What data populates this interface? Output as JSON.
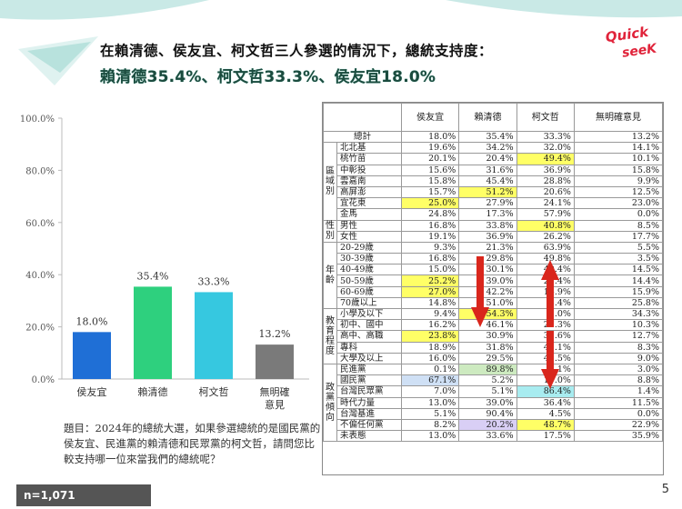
{
  "title": {
    "line1": "在賴清德、侯友宜、柯文哲三人參選的情況下，總統支持度：",
    "line2": "賴清德35.4%、柯文哲33.3%、侯友宜18.0%"
  },
  "logo": {
    "line1": "Quick",
    "line2": "seeK"
  },
  "question": "題目：2024年的總統大選，如果參選總統的是國民黨的侯友宜、民進黨的賴清德和民眾黨的柯文哲，請問您比較支持哪一位來當我們的總統呢？",
  "sample_size": "n=1,071",
  "page_number": "5",
  "colors": {
    "bar_hou": "#1f6fd6",
    "bar_lai": "#2ed07e",
    "bar_ko": "#36c8e0",
    "bar_none": "#7a7a7a"
  },
  "chart_data": {
    "type": "bar",
    "categories": [
      "侯友宜",
      "賴清德",
      "柯文哲",
      "無明確意見"
    ],
    "values": [
      18.0,
      35.4,
      33.3,
      13.2
    ],
    "value_labels": [
      "18.0%",
      "35.4%",
      "33.3%",
      "13.2%"
    ],
    "ylim": [
      0,
      100
    ],
    "yticks": [
      "0.0%",
      "20.0%",
      "40.0%",
      "60.0%",
      "80.0%",
      "100.0%"
    ],
    "grid": false,
    "title": "",
    "xlabel": "",
    "ylabel": ""
  },
  "table": {
    "columns": [
      "侯友宜",
      "賴清德",
      "柯文哲",
      "無明確意見"
    ],
    "total": {
      "label": "總計",
      "values": [
        "18.0%",
        "35.4%",
        "33.3%",
        "13.2%"
      ]
    },
    "groups": [
      {
        "name": "區域別",
        "rows": [
          {
            "label": "北北基",
            "values": [
              "19.6%",
              "34.2%",
              "32.0%",
              "14.1%"
            ],
            "hl": [
              "",
              "",
              "",
              ""
            ]
          },
          {
            "label": "桃竹苗",
            "values": [
              "20.1%",
              "20.4%",
              "49.4%",
              "10.1%"
            ],
            "hl": [
              "",
              "",
              "yellow",
              ""
            ]
          },
          {
            "label": "中彰投",
            "values": [
              "15.6%",
              "31.6%",
              "36.9%",
              "15.8%"
            ],
            "hl": [
              "",
              "",
              "",
              ""
            ]
          },
          {
            "label": "雲嘉南",
            "values": [
              "15.8%",
              "45.4%",
              "28.8%",
              "9.9%"
            ],
            "hl": [
              "",
              "",
              "",
              ""
            ]
          },
          {
            "label": "高屏澎",
            "values": [
              "15.7%",
              "51.2%",
              "20.6%",
              "12.5%"
            ],
            "hl": [
              "",
              "yellow",
              "",
              ""
            ]
          },
          {
            "label": "宜花東",
            "values": [
              "25.0%",
              "27.9%",
              "24.1%",
              "23.0%"
            ],
            "hl": [
              "yellow",
              "",
              "",
              ""
            ]
          },
          {
            "label": "金馬",
            "values": [
              "24.8%",
              "17.3%",
              "57.9%",
              "0.0%"
            ],
            "hl": [
              "",
              "",
              "",
              ""
            ]
          }
        ]
      },
      {
        "name": "性別",
        "rows": [
          {
            "label": "男性",
            "values": [
              "16.8%",
              "33.8%",
              "40.8%",
              "8.5%"
            ],
            "hl": [
              "",
              "",
              "yellow",
              ""
            ]
          },
          {
            "label": "女性",
            "values": [
              "19.1%",
              "36.9%",
              "26.2%",
              "17.7%"
            ],
            "hl": [
              "",
              "",
              "",
              ""
            ]
          }
        ]
      },
      {
        "name": "年齡",
        "rows": [
          {
            "label": "20-29歲",
            "values": [
              "9.3%",
              "21.3%",
              "63.9%",
              "5.5%"
            ],
            "hl": [
              "",
              "",
              "",
              ""
            ]
          },
          {
            "label": "30-39歲",
            "values": [
              "16.8%",
              "29.8%",
              "49.8%",
              "3.5%"
            ],
            "hl": [
              "",
              "",
              "",
              ""
            ]
          },
          {
            "label": "40-49歲",
            "values": [
              "15.0%",
              "30.1%",
              "40.4%",
              "14.5%"
            ],
            "hl": [
              "",
              "",
              "",
              ""
            ]
          },
          {
            "label": "50-59歲",
            "values": [
              "25.2%",
              "39.0%",
              "21.4%",
              "14.4%"
            ],
            "hl": [
              "yellow",
              "",
              "",
              ""
            ]
          },
          {
            "label": "60-69歲",
            "values": [
              "27.0%",
              "42.2%",
              "14.9%",
              "15.9%"
            ],
            "hl": [
              "yellow",
              "",
              "",
              ""
            ]
          },
          {
            "label": "70歲以上",
            "values": [
              "14.8%",
              "51.0%",
              "8.4%",
              "25.8%"
            ],
            "hl": [
              "",
              "",
              "",
              ""
            ]
          }
        ]
      },
      {
        "name": "教育程度",
        "rows": [
          {
            "label": "小學及以下",
            "values": [
              "9.4%",
              "54.3%",
              "2.0%",
              "34.3%"
            ],
            "hl": [
              "",
              "yellow",
              "",
              ""
            ]
          },
          {
            "label": "初中、國中",
            "values": [
              "16.2%",
              "46.1%",
              "27.3%",
              "10.3%"
            ],
            "hl": [
              "",
              "",
              "",
              ""
            ]
          },
          {
            "label": "高中、高職",
            "values": [
              "23.8%",
              "30.9%",
              "32.6%",
              "12.7%"
            ],
            "hl": [
              "yellow",
              "",
              "",
              ""
            ]
          },
          {
            "label": "專科",
            "values": [
              "18.9%",
              "31.8%",
              "41.1%",
              "8.3%"
            ],
            "hl": [
              "",
              "",
              "",
              ""
            ]
          },
          {
            "label": "大學及以上",
            "values": [
              "16.0%",
              "29.5%",
              "45.5%",
              "9.0%"
            ],
            "hl": [
              "",
              "",
              "",
              ""
            ]
          }
        ]
      },
      {
        "name": "政黨傾向",
        "rows": [
          {
            "label": "民進黨",
            "values": [
              "0.1%",
              "89.8%",
              "7.1%",
              "3.0%"
            ],
            "hl": [
              "",
              "green",
              "",
              ""
            ]
          },
          {
            "label": "國民黨",
            "values": [
              "67.1%",
              "5.2%",
              "19.0%",
              "8.8%"
            ],
            "hl": [
              "blue",
              "",
              "",
              ""
            ]
          },
          {
            "label": "台灣民眾黨",
            "values": [
              "7.0%",
              "5.1%",
              "86.4%",
              "1.4%"
            ],
            "hl": [
              "",
              "",
              "cyan",
              ""
            ]
          },
          {
            "label": "時代力量",
            "values": [
              "13.0%",
              "39.0%",
              "36.4%",
              "11.5%"
            ],
            "hl": [
              "",
              "",
              "",
              ""
            ]
          },
          {
            "label": "台灣基進",
            "values": [
              "5.1%",
              "90.4%",
              "4.5%",
              "0.0%"
            ],
            "hl": [
              "",
              "",
              "",
              ""
            ]
          },
          {
            "label": "不偏任何黨",
            "values": [
              "8.2%",
              "20.2%",
              "48.7%",
              "22.9%"
            ],
            "hl": [
              "",
              "purple",
              "yellow",
              ""
            ]
          },
          {
            "label": "未表態",
            "values": [
              "13.0%",
              "33.6%",
              "17.5%",
              "35.9%"
            ],
            "hl": [
              "",
              "",
              "",
              ""
            ]
          }
        ]
      }
    ]
  }
}
